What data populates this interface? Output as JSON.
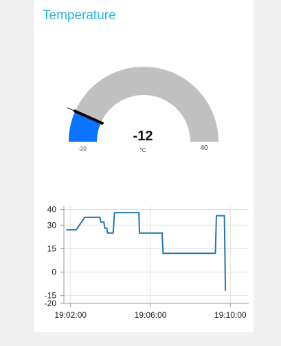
{
  "panel": {
    "title": "Temperature"
  },
  "gauge": {
    "value": -12,
    "value_text": "-12",
    "unit": "°C",
    "min": -20,
    "min_label": "-20",
    "max": 40,
    "max_label": "40",
    "fill_color": "#0a74ff",
    "track_color": "#c0c0c0",
    "needle_color": "#000000"
  },
  "chart_data": {
    "type": "line",
    "title": "",
    "xlabel": "",
    "ylabel": "",
    "x_ticks": [
      "19:02:00",
      "19:06:00",
      "19:10:00"
    ],
    "y_ticks": [
      40,
      30,
      15,
      0,
      -15,
      -20
    ],
    "xlim": [
      "19:01:40",
      "19:10:55"
    ],
    "ylim": [
      -20,
      42
    ],
    "grid": true,
    "line_color": "#1f77b4",
    "series": [
      {
        "points": [
          [
            "19:01:47",
            27
          ],
          [
            "19:02:17",
            27
          ],
          [
            "19:02:43",
            35
          ],
          [
            "19:03:28",
            35
          ],
          [
            "19:03:31",
            32
          ],
          [
            "19:03:40",
            32
          ],
          [
            "19:03:43",
            28
          ],
          [
            "19:03:49",
            28
          ],
          [
            "19:03:51",
            25
          ],
          [
            "19:04:08",
            25
          ],
          [
            "19:04:12",
            38
          ],
          [
            "19:05:25",
            38
          ],
          [
            "19:05:27",
            25
          ],
          [
            "19:06:35",
            25
          ],
          [
            "19:06:38",
            12
          ],
          [
            "19:09:15",
            12
          ],
          [
            "19:09:18",
            36
          ],
          [
            "19:09:42",
            36
          ],
          [
            "19:09:45",
            -12
          ]
        ]
      }
    ]
  }
}
